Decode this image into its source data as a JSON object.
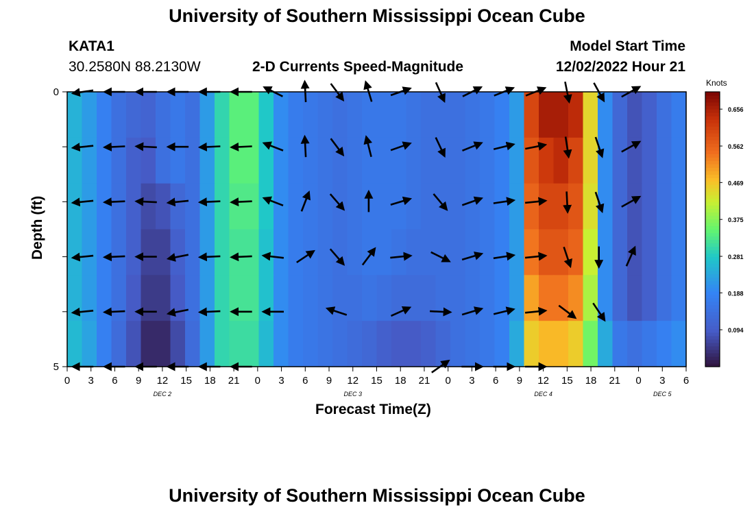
{
  "page": {
    "title": "University of Southern Mississippi Ocean Cube",
    "title_repeat": "University of Southern Mississippi Ocean Cube"
  },
  "header": {
    "station": "KATA1",
    "coords": "30.2580N  88.2130W",
    "subtitle": "2-D Currents Speed-Magnitude",
    "model_label": "Model Start Time",
    "model_time": "12/02/2022 Hour 21"
  },
  "chart_data": {
    "type": "heatmap",
    "title": "2-D Currents Speed-Magnitude",
    "xlabel": "Forecast Time(Z)",
    "ylabel": "Depth (ft)",
    "y_tick_labels": [
      "0",
      "5"
    ],
    "ylim": [
      0,
      5
    ],
    "x_start_hour": 0,
    "x_end_hour": 78,
    "x_tick_labels": [
      "0",
      "3",
      "6",
      "9",
      "12",
      "15",
      "18",
      "21",
      "0",
      "3",
      "6",
      "9",
      "12",
      "15",
      "18",
      "21",
      "0",
      "3",
      "6",
      "9",
      "12",
      "15",
      "18",
      "21",
      "0",
      "3",
      "6"
    ],
    "date_labels": [
      {
        "text": "DEC 2",
        "hour": 12
      },
      {
        "text": "DEC 3",
        "hour": 36
      },
      {
        "text": "DEC 4",
        "hour": 60
      },
      {
        "text": "DEC 5",
        "hour": 75
      }
    ],
    "colorbar": {
      "unit": "Knots",
      "min": 0.0,
      "max": 0.7,
      "ticks": [
        "0.094",
        "0.188",
        "0.281",
        "0.375",
        "0.469",
        "0.562",
        "0.656"
      ],
      "tick_values": [
        0.094,
        0.188,
        0.281,
        0.375,
        0.469,
        0.562,
        0.656
      ]
    },
    "speed_rows": [
      [
        0.25,
        0.22,
        0.18,
        0.14,
        0.12,
        0.11,
        0.14,
        0.16,
        0.14,
        0.22,
        0.3,
        0.34,
        0.34,
        0.28,
        0.2,
        0.17,
        0.16,
        0.15,
        0.14,
        0.15,
        0.16,
        0.16,
        0.16,
        0.15,
        0.14,
        0.14,
        0.14,
        0.15,
        0.16,
        0.18,
        0.22,
        0.6,
        0.66,
        0.66,
        0.64,
        0.45,
        0.2,
        0.12,
        0.08,
        0.1,
        0.14,
        0.17
      ],
      [
        0.25,
        0.22,
        0.18,
        0.14,
        0.1,
        0.09,
        0.14,
        0.16,
        0.14,
        0.22,
        0.3,
        0.34,
        0.34,
        0.28,
        0.2,
        0.17,
        0.16,
        0.15,
        0.14,
        0.15,
        0.16,
        0.16,
        0.16,
        0.15,
        0.14,
        0.14,
        0.14,
        0.15,
        0.16,
        0.18,
        0.22,
        0.58,
        0.62,
        0.64,
        0.6,
        0.45,
        0.2,
        0.12,
        0.08,
        0.1,
        0.14,
        0.17
      ],
      [
        0.25,
        0.22,
        0.18,
        0.14,
        0.1,
        0.07,
        0.08,
        0.12,
        0.14,
        0.22,
        0.3,
        0.33,
        0.33,
        0.28,
        0.2,
        0.17,
        0.16,
        0.15,
        0.14,
        0.15,
        0.16,
        0.16,
        0.16,
        0.15,
        0.14,
        0.14,
        0.14,
        0.15,
        0.16,
        0.18,
        0.22,
        0.56,
        0.6,
        0.6,
        0.58,
        0.44,
        0.2,
        0.12,
        0.08,
        0.1,
        0.14,
        0.17
      ],
      [
        0.25,
        0.22,
        0.18,
        0.14,
        0.1,
        0.06,
        0.06,
        0.1,
        0.14,
        0.22,
        0.3,
        0.32,
        0.32,
        0.27,
        0.2,
        0.17,
        0.16,
        0.15,
        0.14,
        0.15,
        0.16,
        0.16,
        0.15,
        0.14,
        0.14,
        0.14,
        0.14,
        0.15,
        0.16,
        0.18,
        0.22,
        0.54,
        0.58,
        0.58,
        0.56,
        0.42,
        0.2,
        0.12,
        0.08,
        0.1,
        0.14,
        0.17
      ],
      [
        0.25,
        0.22,
        0.18,
        0.14,
        0.09,
        0.05,
        0.05,
        0.09,
        0.14,
        0.22,
        0.3,
        0.32,
        0.32,
        0.27,
        0.2,
        0.17,
        0.16,
        0.15,
        0.14,
        0.14,
        0.15,
        0.14,
        0.13,
        0.13,
        0.13,
        0.14,
        0.14,
        0.15,
        0.16,
        0.18,
        0.22,
        0.5,
        0.54,
        0.54,
        0.52,
        0.4,
        0.2,
        0.12,
        0.08,
        0.1,
        0.14,
        0.17
      ],
      [
        0.26,
        0.23,
        0.18,
        0.13,
        0.08,
        0.03,
        0.03,
        0.07,
        0.13,
        0.22,
        0.3,
        0.31,
        0.31,
        0.26,
        0.2,
        0.17,
        0.16,
        0.15,
        0.14,
        0.13,
        0.12,
        0.1,
        0.09,
        0.09,
        0.1,
        0.12,
        0.14,
        0.15,
        0.16,
        0.18,
        0.24,
        0.46,
        0.48,
        0.48,
        0.46,
        0.36,
        0.24,
        0.16,
        0.14,
        0.16,
        0.18,
        0.2
      ]
    ],
    "vectors": [
      {
        "hour": 2,
        "u": [
          -1,
          -1,
          -1,
          -1,
          -1,
          -1
        ],
        "v": [
          -0.15,
          -0.1,
          -0.1,
          -0.1,
          -0.1,
          0
        ]
      },
      {
        "hour": 6,
        "u": [
          -1,
          -1,
          -1,
          -1,
          -1,
          -1
        ],
        "v": [
          0,
          -0.05,
          -0.05,
          -0.05,
          -0.05,
          0
        ]
      },
      {
        "hour": 10,
        "u": [
          -1,
          -1,
          -1,
          -1,
          -1,
          -1
        ],
        "v": [
          0,
          0.05,
          0.05,
          0,
          0,
          0
        ]
      },
      {
        "hour": 14,
        "u": [
          -1,
          -1,
          -1,
          -1,
          -1,
          -1
        ],
        "v": [
          0,
          0,
          -0.1,
          -0.2,
          -0.2,
          0
        ]
      },
      {
        "hour": 18,
        "u": [
          -1,
          -1,
          -1,
          -1,
          -1,
          -1
        ],
        "v": [
          0,
          -0.05,
          -0.05,
          -0.05,
          -0.05,
          0
        ]
      },
      {
        "hour": 22,
        "u": [
          -1,
          -1,
          -1,
          -1,
          -1,
          -1
        ],
        "v": [
          0,
          -0.05,
          -0.05,
          -0.05,
          0,
          0
        ]
      },
      {
        "hour": 26,
        "u": [
          -0.9,
          -0.9,
          -0.9,
          -0.9,
          -0.9
        ],
        "v": [
          0.45,
          0.35,
          0.35,
          0.1,
          0
        ]
      },
      {
        "hour": 30,
        "u": [
          -0.05,
          -0.05,
          0.35,
          0.6
        ],
        "v": [
          1,
          1,
          0.9,
          0.4
        ]
      },
      {
        "hour": 34,
        "u": [
          0.6,
          0.6,
          0.65,
          0.65,
          -0.9
        ],
        "v": [
          -0.8,
          -0.8,
          -0.75,
          -0.75,
          0.3
        ]
      },
      {
        "hour": 38,
        "u": [
          -0.3,
          -0.25,
          0.0,
          0.6
        ],
        "v": [
          1,
          1,
          1,
          0.8
        ]
      },
      {
        "hour": 42,
        "u": [
          1,
          1,
          1,
          1,
          0.9
        ],
        "v": [
          0.35,
          0.35,
          0.3,
          0.1,
          0.4
        ]
      },
      {
        "hour": 47,
        "u": [
          0.4,
          0.4,
          0.5,
          0.9,
          1,
          1
        ],
        "v": [
          -0.9,
          -0.85,
          -0.6,
          -0.45,
          -0.05,
          0.7
        ]
      },
      {
        "hour": 51,
        "u": [
          1,
          1,
          1,
          1,
          1,
          1
        ],
        "v": [
          0.5,
          0.4,
          0.35,
          0.3,
          0.3,
          0
        ]
      },
      {
        "hour": 55,
        "u": [
          1,
          1,
          1,
          1,
          1,
          1
        ],
        "v": [
          0.4,
          0.25,
          0.15,
          0.15,
          0.25,
          0
        ]
      },
      {
        "hour": 59,
        "u": [
          1,
          1,
          1,
          1,
          1,
          1
        ],
        "v": [
          0.4,
          0.2,
          0.1,
          0.1,
          0.1,
          0
        ]
      },
      {
        "hour": 63,
        "u": [
          0.2,
          0.15,
          0.05,
          0.3,
          0.8
        ],
        "v": [
          -1,
          -1,
          -1,
          -0.9,
          -0.6
        ]
      },
      {
        "hour": 67,
        "u": [
          0.5,
          0.3,
          0.3,
          0,
          0.6
        ],
        "v": [
          -0.9,
          -0.9,
          -0.9,
          -1,
          -0.9
        ]
      },
      {
        "hour": 71,
        "u": [
          0.9,
          0.9,
          0.9,
          0.4
        ],
        "v": [
          0.5,
          0.5,
          0.5,
          0.9
        ]
      }
    ]
  }
}
